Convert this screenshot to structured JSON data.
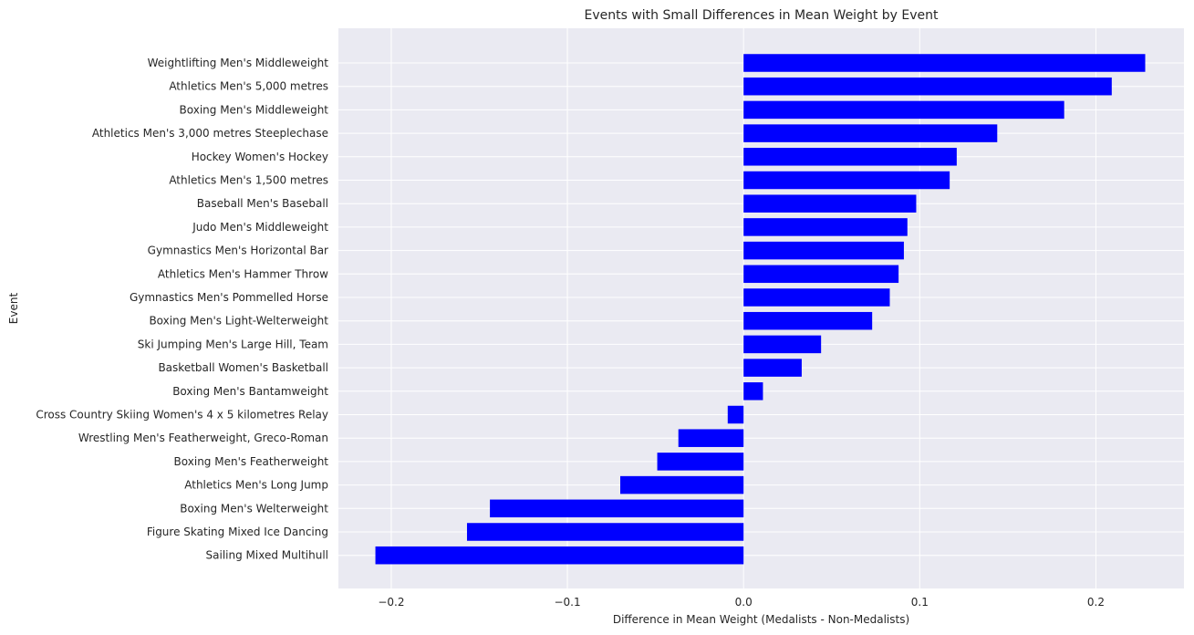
{
  "chart_data": {
    "type": "bar",
    "orientation": "horizontal",
    "title": "Events with Small Differences in Mean Weight by Event",
    "xlabel": "Difference in Mean Weight (Medalists - Non-Medalists)",
    "ylabel": "Event",
    "xlim": [
      -0.23,
      0.25
    ],
    "xticks": [
      -0.2,
      -0.1,
      0.0,
      0.1,
      0.2
    ],
    "xtick_labels": [
      "−0.2",
      "−0.1",
      "0.0",
      "0.1",
      "0.2"
    ],
    "grid": true,
    "colors": {
      "bar": "#0000ff",
      "plot_background": "#eaeaf2",
      "grid": "#ffffff"
    },
    "categories": [
      "Weightlifting Men's Middleweight",
      "Athletics Men's 5,000 metres",
      "Boxing Men's Middleweight",
      "Athletics Men's 3,000 metres Steeplechase",
      "Hockey Women's Hockey",
      "Athletics Men's 1,500 metres",
      "Baseball Men's Baseball",
      "Judo Men's Middleweight",
      "Gymnastics Men's Horizontal Bar",
      "Athletics Men's Hammer Throw",
      "Gymnastics Men's Pommelled Horse",
      "Boxing Men's Light-Welterweight",
      "Ski Jumping Men's Large Hill, Team",
      "Basketball Women's Basketball",
      "Boxing Men's Bantamweight",
      "Cross Country Skiing Women's 4 x 5 kilometres Relay",
      "Wrestling Men's Featherweight, Greco-Roman",
      "Boxing Men's Featherweight",
      "Athletics Men's Long Jump",
      "Boxing Men's Welterweight",
      "Figure Skating Mixed Ice Dancing",
      "Sailing Mixed Multihull"
    ],
    "values": [
      0.228,
      0.209,
      0.182,
      0.144,
      0.121,
      0.117,
      0.098,
      0.093,
      0.091,
      0.088,
      0.083,
      0.073,
      0.044,
      0.033,
      0.011,
      -0.009,
      -0.037,
      -0.049,
      -0.07,
      -0.144,
      -0.157,
      -0.209
    ]
  }
}
